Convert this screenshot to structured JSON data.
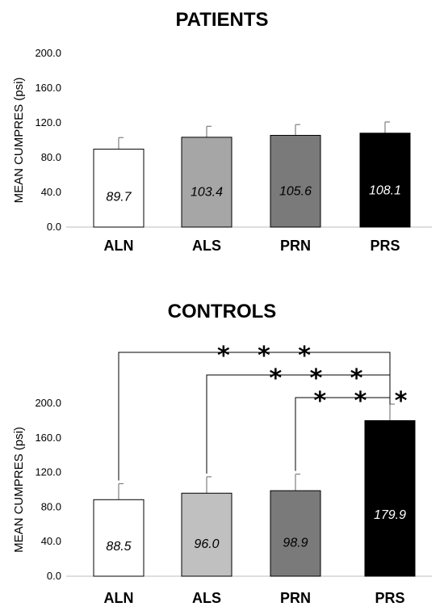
{
  "chart_data": [
    {
      "type": "bar",
      "title": "PATIENTS",
      "ylabel": "MEAN CUMPRES (psi)",
      "ylim": [
        0,
        200
      ],
      "yticks": [
        "0.0",
        "40.0",
        "80.0",
        "120.0",
        "160.0",
        "200.0"
      ],
      "categories": [
        "ALN",
        "ALS",
        "PRN",
        "PRS"
      ],
      "values": [
        89.7,
        103.4,
        105.6,
        108.1
      ],
      "value_labels": [
        "89.7",
        "103.4",
        "105.6",
        "108.1"
      ],
      "error_upper": [
        103,
        116,
        118,
        121
      ],
      "bar_colors": [
        "#ffffff",
        "#a6a6a6",
        "#7a7a7a",
        "#000000"
      ],
      "label_colors": [
        "#000000",
        "#000000",
        "#000000",
        "#ffffff"
      ],
      "significance": []
    },
    {
      "type": "bar",
      "title": "CONTROLS",
      "ylabel": "MEAN CUMPRES (psi)",
      "ylim": [
        0,
        200
      ],
      "yticks": [
        "0.0",
        "40.0",
        "80.0",
        "120.0",
        "160.0",
        "200.0"
      ],
      "categories": [
        "ALN",
        "ALS",
        "PRN",
        "PRS"
      ],
      "values": [
        88.5,
        96.0,
        98.9,
        179.9
      ],
      "value_labels": [
        "88.5",
        "96.0",
        "98.9",
        "179.9"
      ],
      "error_upper": [
        107,
        115,
        118,
        199
      ],
      "bar_colors": [
        "#ffffff",
        "#c0c0c0",
        "#7a7a7a",
        "#000000"
      ],
      "label_colors": [
        "#000000",
        "#000000",
        "#000000",
        "#ffffff"
      ],
      "significance": [
        {
          "from": "ALN",
          "to": "PRS",
          "label": "***"
        },
        {
          "from": "ALS",
          "to": "PRS",
          "label": "***"
        },
        {
          "from": "PRN",
          "to": "PRS",
          "label": "***"
        }
      ]
    }
  ]
}
